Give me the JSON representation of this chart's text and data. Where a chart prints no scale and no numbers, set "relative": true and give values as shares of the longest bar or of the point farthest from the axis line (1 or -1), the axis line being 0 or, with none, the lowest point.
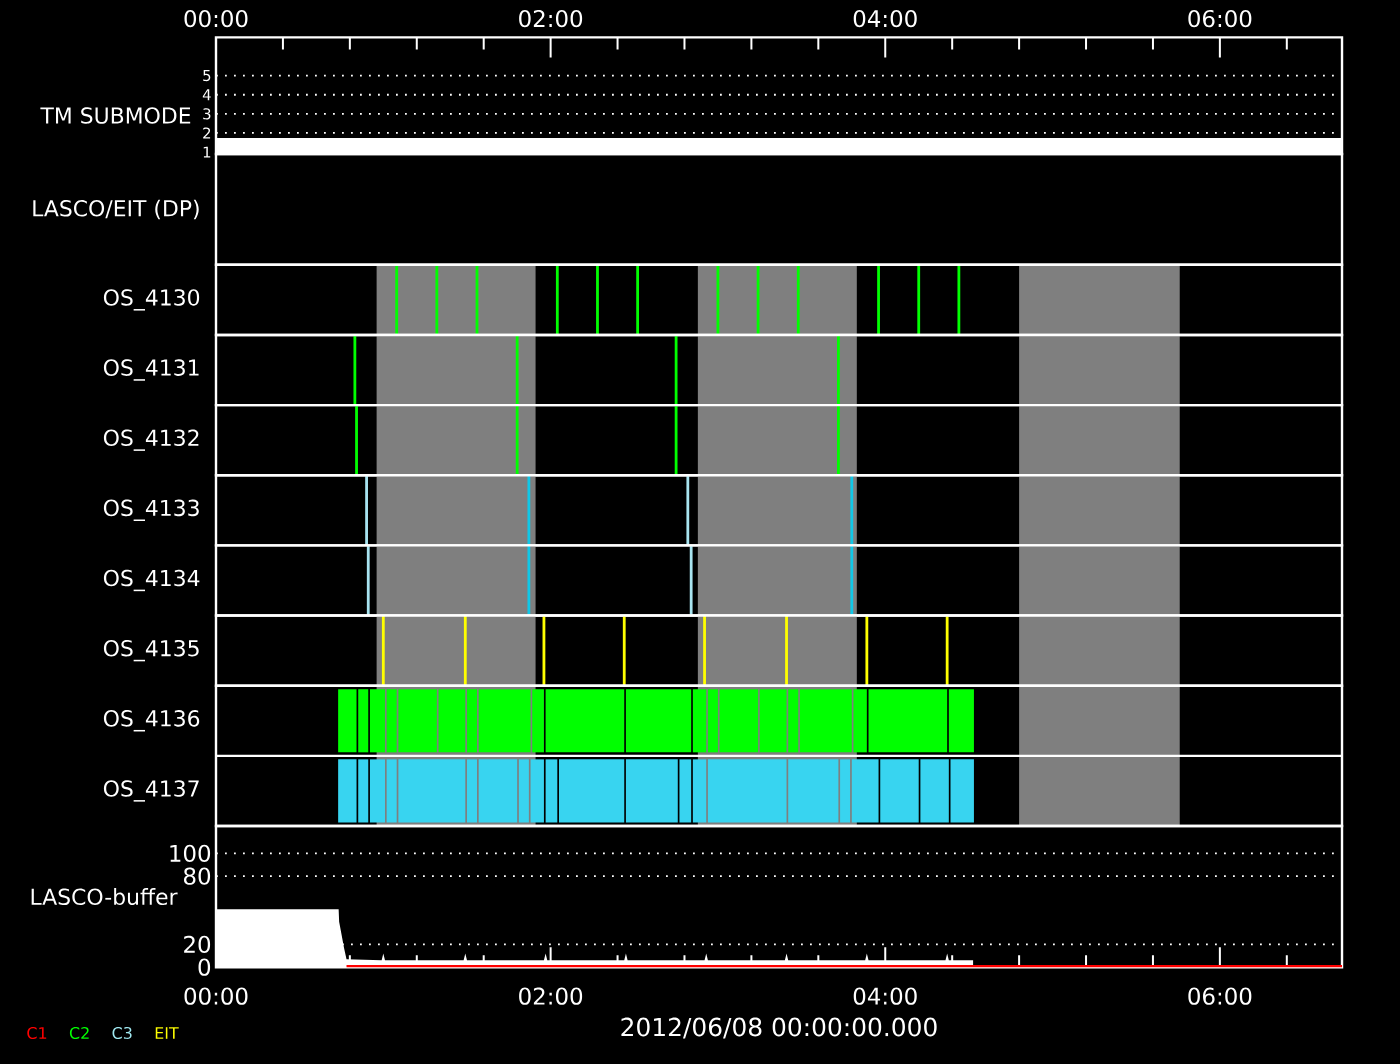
{
  "chart_data": [
    {
      "type": "line",
      "ylabel": "TM SUBMODE",
      "x": [
        0,
        6.73
      ],
      "values": [
        1,
        1
      ],
      "color": "#ffffff",
      "xlim": [
        0,
        6.73
      ],
      "xticks": [
        {
          "value": 0,
          "label": "00:00"
        },
        {
          "value": 0.4,
          "label": null
        },
        {
          "value": 0.8,
          "label": null
        },
        {
          "value": 1.2,
          "label": null
        },
        {
          "value": 1.6,
          "label": null
        },
        {
          "value": 2,
          "label": "02:00"
        },
        {
          "value": 2.4,
          "label": null
        },
        {
          "value": 2.8,
          "label": null
        },
        {
          "value": 3.2,
          "label": null
        },
        {
          "value": 3.6,
          "label": null
        },
        {
          "value": 4,
          "label": "04:00"
        },
        {
          "value": 4.4,
          "label": null
        },
        {
          "value": 4.8,
          "label": null
        },
        {
          "value": 5.2,
          "label": null
        },
        {
          "value": 5.6,
          "label": null
        },
        {
          "value": 6,
          "label": "06:00"
        },
        {
          "value": 6.4,
          "label": null
        }
      ],
      "ylim": [
        0.9,
        7
      ],
      "yticks": [
        1,
        2,
        3,
        4,
        5
      ],
      "grid": "y"
    },
    {
      "type": "other",
      "ylabel": "LASCO/EIT (DP)"
    },
    {
      "type": "bar",
      "ylabel": "OS_4130",
      "relative": true,
      "x": [
        1.08,
        1.32,
        1.56,
        2.04,
        2.28,
        2.52,
        3.0,
        3.24,
        3.48,
        3.96,
        4.2,
        4.44
      ],
      "values": [
        1,
        1,
        1,
        1,
        1,
        1,
        1,
        1,
        1,
        1,
        1,
        1
      ],
      "color": "#00ff00",
      "xlim": [
        0,
        6.73
      ],
      "tick_labels": false,
      "bands": [
        {
          "axis": "x",
          "from": 0.96,
          "to": 1.91,
          "color": "#7f7f7f"
        },
        {
          "axis": "x",
          "from": 2.88,
          "to": 3.83,
          "color": "#7f7f7f"
        },
        {
          "axis": "x",
          "from": 4.8,
          "to": 5.76,
          "color": "#7f7f7f"
        }
      ]
    },
    {
      "type": "bar",
      "ylabel": "OS_4131",
      "relative": true,
      "x": [
        0.83,
        1.8,
        2.75,
        3.72
      ],
      "values": [
        1,
        1,
        1,
        1
      ],
      "color": "#00ff00",
      "xlim": [
        0,
        6.73
      ],
      "tick_labels": false,
      "bands": [
        {
          "axis": "x",
          "from": 0.96,
          "to": 1.91,
          "color": "#7f7f7f"
        },
        {
          "axis": "x",
          "from": 2.88,
          "to": 3.83,
          "color": "#7f7f7f"
        },
        {
          "axis": "x",
          "from": 4.8,
          "to": 5.76,
          "color": "#7f7f7f"
        }
      ]
    },
    {
      "type": "bar",
      "ylabel": "OS_4132",
      "relative": true,
      "x": [
        0.84,
        1.8,
        2.75,
        3.72
      ],
      "values": [
        1,
        1,
        1,
        1
      ],
      "color": "#00ff00",
      "xlim": [
        0,
        6.73
      ],
      "tick_labels": false,
      "bands": [
        {
          "axis": "x",
          "from": 0.96,
          "to": 1.91,
          "color": "#7f7f7f"
        },
        {
          "axis": "x",
          "from": 2.88,
          "to": 3.83,
          "color": "#7f7f7f"
        },
        {
          "axis": "x",
          "from": 4.8,
          "to": 5.76,
          "color": "#7f7f7f"
        }
      ]
    },
    {
      "type": "bar",
      "ylabel": "OS_4133",
      "relative": true,
      "x": [
        0.9,
        1.87,
        2.82,
        3.8
      ],
      "values": [
        1,
        1,
        1,
        1
      ],
      "colors": [
        "#a8e4f0",
        "#10c8e8",
        "#a8e4f0",
        "#10c8e8"
      ],
      "xlim": [
        0,
        6.73
      ],
      "tick_labels": false,
      "bands": [
        {
          "axis": "x",
          "from": 0.96,
          "to": 1.91,
          "color": "#7f7f7f"
        },
        {
          "axis": "x",
          "from": 2.88,
          "to": 3.83,
          "color": "#7f7f7f"
        },
        {
          "axis": "x",
          "from": 4.8,
          "to": 5.76,
          "color": "#7f7f7f"
        }
      ]
    },
    {
      "type": "bar",
      "ylabel": "OS_4134",
      "relative": true,
      "x": [
        0.91,
        1.87,
        2.84,
        3.8
      ],
      "values": [
        1,
        1,
        1,
        1
      ],
      "colors": [
        "#a8e4f0",
        "#10c8e8",
        "#a8e4f0",
        "#10c8e8"
      ],
      "xlim": [
        0,
        6.73
      ],
      "tick_labels": false,
      "bands": [
        {
          "axis": "x",
          "from": 0.96,
          "to": 1.91,
          "color": "#7f7f7f"
        },
        {
          "axis": "x",
          "from": 2.88,
          "to": 3.83,
          "color": "#7f7f7f"
        },
        {
          "axis": "x",
          "from": 4.8,
          "to": 5.76,
          "color": "#7f7f7f"
        }
      ]
    },
    {
      "type": "bar",
      "ylabel": "OS_4135",
      "relative": true,
      "x": [
        1.0,
        1.49,
        1.96,
        2.44,
        2.92,
        3.41,
        3.89,
        4.37
      ],
      "values": [
        1,
        1,
        1,
        1,
        1,
        1,
        1,
        1
      ],
      "color": "#ffff00",
      "xlim": [
        0,
        6.73
      ],
      "tick_labels": false,
      "bands": [
        {
          "axis": "x",
          "from": 0.96,
          "to": 1.91,
          "color": "#7f7f7f"
        },
        {
          "axis": "x",
          "from": 2.88,
          "to": 3.83,
          "color": "#7f7f7f"
        },
        {
          "axis": "x",
          "from": 4.8,
          "to": 5.76,
          "color": "#7f7f7f"
        }
      ]
    },
    {
      "type": "bar",
      "orientation": "horizontal",
      "categories": [
        "OS_4136",
        "OS_4137"
      ],
      "series": [
        {
          "colors": [
            "#00ff00",
            "#38d4f0"
          ],
          "base": [
            0.73,
            0.73
          ],
          "values": [
            0.11,
            0.11
          ]
        },
        {
          "colors": [
            "#00ff00",
            "#38d4f0"
          ],
          "base": [
            0.85,
            0.85
          ],
          "values": [
            0.06,
            0.06
          ]
        },
        {
          "colors": [
            "#00ff00",
            "#38d4f0"
          ],
          "base": [
            0.92,
            0.92
          ],
          "values": [
            0.09,
            0.09
          ]
        },
        {
          "colors": [
            "#00ff00",
            "#38d4f0"
          ],
          "base": [
            1.02,
            1.02
          ],
          "values": [
            0.06,
            0.06
          ]
        },
        {
          "colors": [
            "#00ff00",
            "#38d4f0"
          ],
          "base": [
            1.09,
            1.09
          ],
          "values": [
            0.23,
            0.4
          ]
        },
        {
          "colors": [
            "#00ff00",
            "#38d4f0"
          ],
          "base": [
            1.33,
            1.5
          ],
          "values": [
            0.16,
            0.06
          ]
        },
        {
          "colors": [
            "#00ff00",
            "#38d4f0"
          ],
          "base": [
            1.5,
            1.57
          ],
          "values": [
            0.06,
            0.23
          ]
        },
        {
          "colors": [
            "#00ff00",
            "#38d4f0"
          ],
          "base": [
            1.57,
            1.81
          ],
          "values": [
            0.31,
            0.06
          ]
        },
        {
          "colors": [
            "#00ff00",
            "#38d4f0"
          ],
          "base": [
            1.89,
            1.88
          ],
          "values": [
            0.07,
            0.08
          ]
        },
        {
          "colors": [
            "#00ff00",
            "#38d4f0"
          ],
          "base": [
            1.97,
            1.97
          ],
          "values": [
            0.47,
            0.07
          ]
        },
        {
          "colors": [
            "#00ff00",
            "#38d4f0"
          ],
          "base": [
            2.45,
            2.05
          ],
          "values": [
            0.39,
            0.39
          ]
        },
        {
          "colors": [
            "#00ff00",
            "#38d4f0"
          ],
          "base": [
            2.85,
            2.45
          ],
          "values": [
            0.08,
            0.31
          ]
        },
        {
          "colors": [
            "#00ff00",
            "#38d4f0"
          ],
          "base": [
            2.94,
            2.77
          ],
          "values": [
            0.06,
            0.07
          ]
        },
        {
          "colors": [
            "#00ff00",
            "#38d4f0"
          ],
          "base": [
            3.01,
            2.85
          ],
          "values": [
            0.23,
            0.08
          ]
        },
        {
          "colors": [
            "#00ff00",
            "#38d4f0"
          ],
          "base": [
            3.25,
            2.94
          ],
          "values": [
            0.16,
            0.47
          ]
        },
        {
          "colors": [
            "#00ff00",
            "#38d4f0"
          ],
          "base": [
            3.42,
            3.42
          ],
          "values": [
            0.06,
            0.3
          ]
        },
        {
          "colors": [
            "#00ff00",
            "#38d4f0"
          ],
          "base": [
            3.49,
            3.73
          ],
          "values": [
            0.31,
            0.06
          ]
        },
        {
          "colors": [
            "#00ff00",
            "#38d4f0"
          ],
          "base": [
            3.81,
            3.8
          ],
          "values": [
            0.08,
            0.16
          ]
        },
        {
          "colors": [
            "#00ff00",
            "#38d4f0"
          ],
          "base": [
            3.9,
            3.97
          ],
          "values": [
            0.47,
            0.23
          ]
        },
        {
          "colors": [
            "#00ff00",
            "#38d4f0"
          ],
          "base": [
            4.38,
            4.21
          ],
          "values": [
            0.15,
            0.17
          ]
        },
        {
          "colors": [
            "#00ff00",
            "#38d4f0"
          ],
          "base": [
            null,
            4.39
          ],
          "values": [
            null,
            0.14
          ]
        }
      ],
      "xlim": [
        0,
        6.73
      ],
      "tick_labels": "y",
      "bands": [
        {
          "axis": "x",
          "from": 0.96,
          "to": 1.91,
          "color": "#7f7f7f"
        },
        {
          "axis": "x",
          "from": 2.88,
          "to": 3.83,
          "color": "#7f7f7f"
        },
        {
          "axis": "x",
          "from": 4.8,
          "to": 5.76,
          "color": "#7f7f7f"
        }
      ]
    },
    {
      "type": "area",
      "ylabel": "LASCO-buffer",
      "xlabel": "2012/06/08 00:00:00.000",
      "series": [
        {
          "color": "#ffffff",
          "x": [
            0,
            0.733,
            0.736,
            0.745,
            0.755,
            0.765,
            0.78,
            0.99,
            1.0,
            1.01,
            1.48,
            1.49,
            1.5,
            1.96,
            1.97,
            1.98,
            2.44,
            2.45,
            2.46,
            2.92,
            2.93,
            2.94,
            3.4,
            3.41,
            3.42,
            3.88,
            3.89,
            3.9,
            4.36,
            4.37,
            4.38,
            4.525
          ],
          "values": [
            51,
            51,
            40,
            33,
            25,
            17,
            7,
            6,
            12,
            6,
            6,
            12,
            6,
            6,
            12,
            6,
            6,
            12,
            6,
            6,
            12,
            6,
            6,
            12,
            6,
            6,
            12,
            6,
            6,
            12,
            6,
            6
          ]
        },
        {
          "type": "line",
          "color": "#ff0000",
          "x": [
            0.78,
            6.73
          ],
          "values": [
            0,
            0
          ]
        }
      ],
      "xlim": [
        0,
        6.73
      ],
      "xticks": [
        {
          "value": 0,
          "label": "00:00"
        },
        {
          "value": 0.4,
          "label": null
        },
        {
          "value": 0.8,
          "label": null
        },
        {
          "value": 1.2,
          "label": null
        },
        {
          "value": 1.6,
          "label": null
        },
        {
          "value": 2,
          "label": "02:00"
        },
        {
          "value": 2.4,
          "label": null
        },
        {
          "value": 2.8,
          "label": null
        },
        {
          "value": 3.2,
          "label": null
        },
        {
          "value": 3.6,
          "label": null
        },
        {
          "value": 4,
          "label": "04:00"
        },
        {
          "value": 4.4,
          "label": null
        },
        {
          "value": 4.8,
          "label": null
        },
        {
          "value": 5.2,
          "label": null
        },
        {
          "value": 5.6,
          "label": null
        },
        {
          "value": 6,
          "label": "06:00"
        },
        {
          "value": 6.4,
          "label": null
        }
      ],
      "ylim": [
        0,
        124
      ],
      "yticks": [
        0,
        20,
        80,
        100
      ],
      "grid": "y"
    },
    {
      "type": "other",
      "categories": [
        "C1",
        "C2",
        "C3",
        "EIT"
      ],
      "colors": [
        "#ff0000",
        "#00ff00",
        "#a0e8f0",
        "#ffff00"
      ]
    }
  ]
}
